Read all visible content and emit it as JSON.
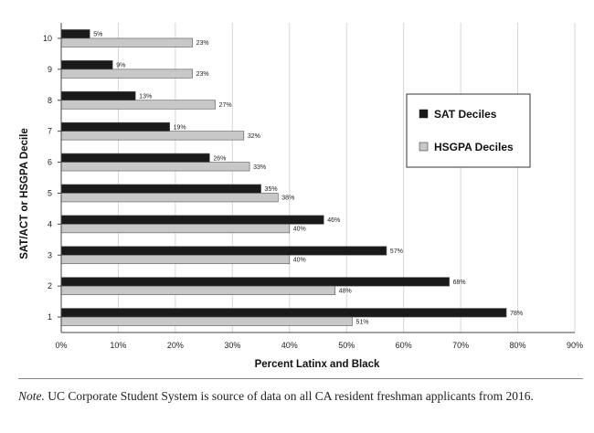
{
  "chart_data": {
    "type": "bar",
    "orientation": "horizontal",
    "categories": [
      "1",
      "2",
      "3",
      "4",
      "5",
      "6",
      "7",
      "8",
      "9",
      "10"
    ],
    "series": [
      {
        "name": "SAT Deciles",
        "color": "#1a1a1a",
        "values": [
          78,
          68,
          57,
          46,
          35,
          26,
          19,
          13,
          9,
          5
        ],
        "labels": [
          "78%",
          "68%",
          "57%",
          "46%",
          "35%",
          "26%",
          "19%",
          "13%",
          "9%",
          "5%"
        ]
      },
      {
        "name": "HSGPA Deciles",
        "color": "#c8c8c8",
        "values": [
          51,
          48,
          40,
          40,
          38,
          33,
          32,
          27,
          23,
          23
        ],
        "labels": [
          "51%",
          "48%",
          "40%",
          "40%",
          "38%",
          "33%",
          "32%",
          "27%",
          "23%",
          "23%"
        ]
      }
    ],
    "xlim": [
      0,
      90
    ],
    "xticks": [
      "0%",
      "10%",
      "20%",
      "30%",
      "40%",
      "50%",
      "60%",
      "70%",
      "80%",
      "90%"
    ],
    "xlabel": "Percent Latinx and Black",
    "ylabel": "SAT/ACT or HSGPA Decile",
    "grid": "vertical",
    "legend": "right"
  },
  "note": {
    "lead": "Note.",
    "text": " UC Corporate Student System is source of  data on all CA resident freshman applicants from 2016."
  }
}
